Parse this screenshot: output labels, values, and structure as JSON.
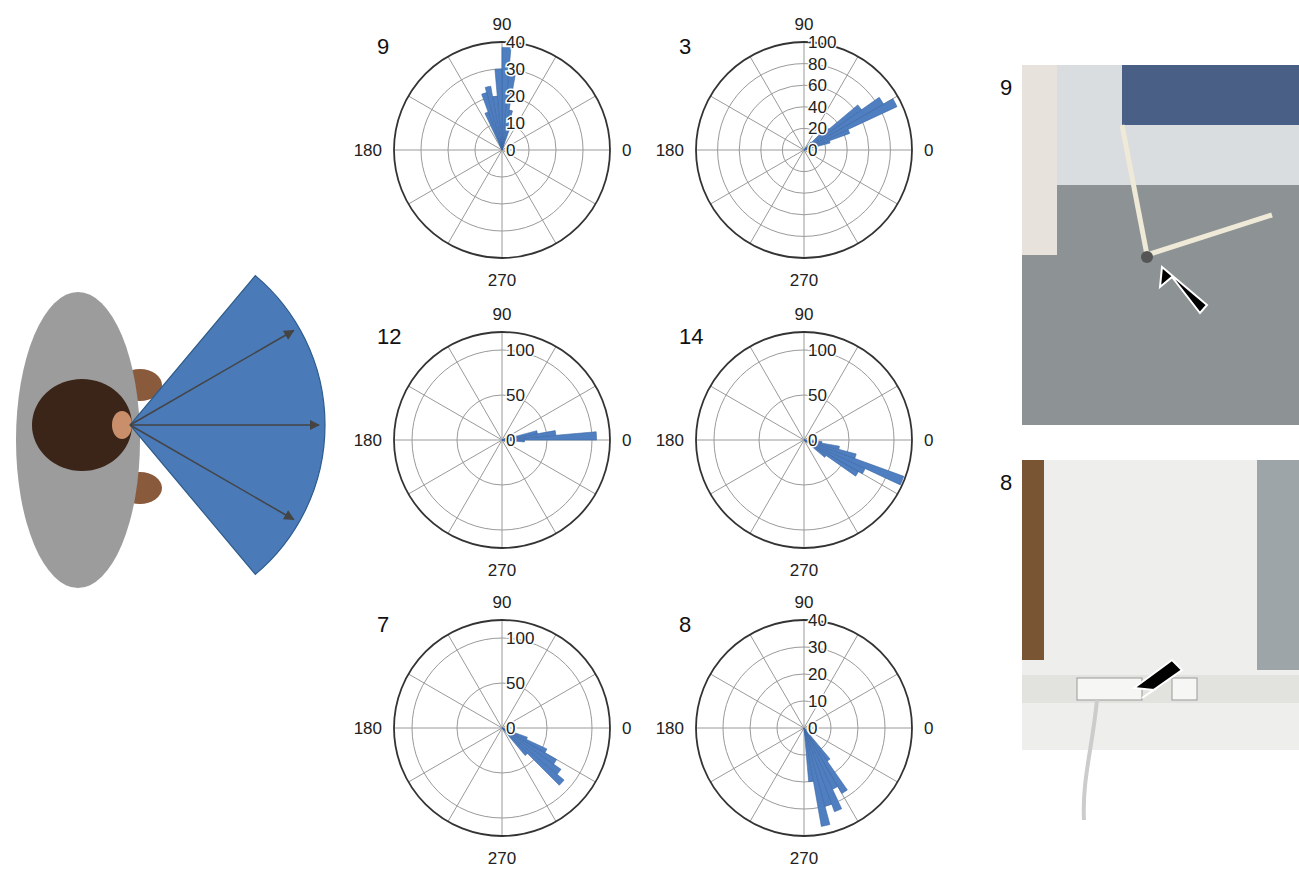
{
  "chart_data": [
    {
      "type": "polar_bar",
      "title": "9",
      "color": "#4f7fc1",
      "grid": true,
      "xlim": [
        0,
        360
      ],
      "xticks": [
        0,
        {
          "value": 30,
          "label": null
        },
        {
          "value": 60,
          "label": null
        },
        90,
        {
          "value": 120,
          "label": null
        },
        {
          "value": 150,
          "label": null
        },
        180,
        {
          "value": 210,
          "label": null
        },
        {
          "value": 240,
          "label": null
        },
        270,
        {
          "value": 300,
          "label": null
        },
        {
          "value": 330,
          "label": null
        }
      ],
      "ylim": [
        0,
        40
      ],
      "yticks": [
        0,
        10,
        20,
        30,
        40
      ],
      "bins": [
        70,
        75,
        80,
        85,
        90,
        95,
        100,
        105,
        110,
        115
      ],
      "values": [
        8,
        15,
        28,
        38,
        30,
        20,
        24,
        22,
        15
      ]
    },
    {
      "type": "polar_bar",
      "title": "3",
      "color": "#4f7fc1",
      "grid": true,
      "xlim": [
        0,
        360
      ],
      "xticks": [
        0,
        {
          "value": 30,
          "label": null
        },
        {
          "value": 60,
          "label": null
        },
        90,
        {
          "value": 120,
          "label": null
        },
        {
          "value": 150,
          "label": null
        },
        180,
        {
          "value": 210,
          "label": null
        },
        {
          "value": 240,
          "label": null
        },
        270,
        {
          "value": 300,
          "label": null
        },
        {
          "value": 330,
          "label": null
        }
      ],
      "ylim": [
        0,
        100
      ],
      "yticks": [
        0,
        20,
        40,
        60,
        80,
        100
      ],
      "bins": [
        15,
        20,
        25,
        30,
        35,
        40,
        45,
        50
      ],
      "values": [
        25,
        45,
        95,
        85,
        65,
        30,
        10
      ]
    },
    {
      "type": "polar_bar",
      "title": "12",
      "color": "#4f7fc1",
      "grid": true,
      "xlim": [
        0,
        360
      ],
      "xticks": [
        0,
        {
          "value": 30,
          "label": null
        },
        {
          "value": 60,
          "label": null
        },
        90,
        {
          "value": 120,
          "label": null
        },
        {
          "value": 150,
          "label": null
        },
        180,
        {
          "value": 210,
          "label": null
        },
        {
          "value": 240,
          "label": null
        },
        270,
        {
          "value": 300,
          "label": null
        },
        {
          "value": 330,
          "label": null
        }
      ],
      "ylim": [
        0,
        120
      ],
      "yticks": [
        0,
        50,
        100
      ],
      "bins": [
        -5,
        0,
        5,
        10,
        15,
        20
      ],
      "values": [
        25,
        105,
        60,
        40,
        15
      ]
    },
    {
      "type": "polar_bar",
      "title": "14",
      "color": "#4f7fc1",
      "grid": true,
      "xlim": [
        0,
        360
      ],
      "xticks": [
        0,
        {
          "value": 30,
          "label": null
        },
        {
          "value": 60,
          "label": null
        },
        90,
        {
          "value": 120,
          "label": null
        },
        {
          "value": 150,
          "label": null
        },
        180,
        {
          "value": 210,
          "label": null
        },
        {
          "value": 240,
          "label": null
        },
        270,
        {
          "value": 300,
          "label": null
        },
        {
          "value": 330,
          "label": null
        }
      ],
      "ylim": [
        0,
        120
      ],
      "yticks": [
        0,
        50,
        100
      ],
      "bins": [
        320,
        325,
        330,
        335,
        340,
        345,
        350,
        355
      ],
      "values": [
        30,
        70,
        75,
        118,
        60,
        40,
        20
      ]
    },
    {
      "type": "polar_bar",
      "title": "7",
      "color": "#4f7fc1",
      "grid": true,
      "xlim": [
        0,
        360
      ],
      "xticks": [
        0,
        {
          "value": 30,
          "label": null
        },
        {
          "value": 60,
          "label": null
        },
        90,
        {
          "value": 120,
          "label": null
        },
        {
          "value": 150,
          "label": null
        },
        180,
        {
          "value": 210,
          "label": null
        },
        {
          "value": 240,
          "label": null
        },
        270,
        {
          "value": 300,
          "label": null
        },
        {
          "value": 330,
          "label": null
        }
      ],
      "ylim": [
        0,
        120
      ],
      "yticks": [
        0,
        50,
        100
      ],
      "bins": [
        310,
        315,
        320,
        325,
        330,
        335,
        340
      ],
      "values": [
        40,
        90,
        80,
        70,
        55,
        30
      ]
    },
    {
      "type": "polar_bar",
      "title": "8",
      "color": "#4f7fc1",
      "grid": true,
      "xlim": [
        0,
        360
      ],
      "xticks": [
        0,
        {
          "value": 30,
          "label": null
        },
        {
          "value": 60,
          "label": null
        },
        90,
        {
          "value": 120,
          "label": null
        },
        {
          "value": 150,
          "label": null
        },
        180,
        {
          "value": 210,
          "label": null
        },
        {
          "value": 240,
          "label": null
        },
        270,
        {
          "value": 300,
          "label": null
        },
        {
          "value": 330,
          "label": null
        }
      ],
      "ylim": [
        0,
        40
      ],
      "yticks": [
        0,
        10,
        20,
        30,
        40
      ],
      "bins": [
        275,
        280,
        285,
        290,
        295,
        300,
        305,
        310
      ],
      "values": [
        20,
        37,
        30,
        33,
        25,
        28,
        15
      ]
    }
  ],
  "photos": [
    {
      "label": "9"
    },
    {
      "label": "8"
    }
  ]
}
